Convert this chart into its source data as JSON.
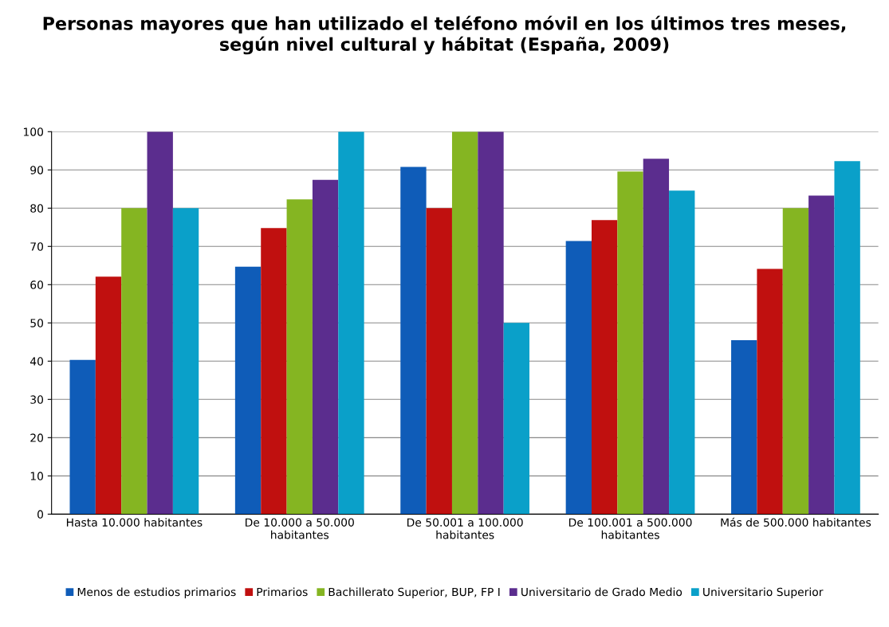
{
  "chart_data": {
    "type": "bar",
    "title": "Personas mayores que han utilizado el teléfono móvil en los últimos tres meses,\nsegún nivel cultural y hábitat (España, 2009)",
    "categories": [
      "Hasta 10.000 habitantes",
      "De 10.000 a 50.000\nhabitantes",
      "De 50.001 a 100.000\nhabitantes",
      "De 100.001 a 500.000\nhabitantes",
      "Más de 500.000 habitantes"
    ],
    "series": [
      {
        "name": "Menos de estudios primarios",
        "color": "#0f5cb8",
        "values": [
          40.3,
          64.7,
          90.8,
          71.4,
          45.5
        ]
      },
      {
        "name": "Primarios",
        "color": "#c0100f",
        "values": [
          62.1,
          74.8,
          80,
          76.9,
          64.1
        ]
      },
      {
        "name": "Bachillerato Superior, BUP, FP I",
        "color": "#85b522",
        "values": [
          80,
          82.3,
          100,
          89.6,
          80
        ]
      },
      {
        "name": "Universitario de Grado Medio",
        "color": "#5b2d8e",
        "values": [
          100,
          87.4,
          100,
          92.9,
          83.3
        ]
      },
      {
        "name": "Universitario Superior",
        "color": "#0aa0c9",
        "values": [
          80,
          100,
          50,
          84.6,
          92.3
        ]
      }
    ],
    "ylim": [
      0,
      100
    ],
    "yticks": [
      0,
      10,
      20,
      30,
      40,
      50,
      60,
      70,
      80,
      90,
      100
    ],
    "grid": "y",
    "legend": "bottom"
  }
}
